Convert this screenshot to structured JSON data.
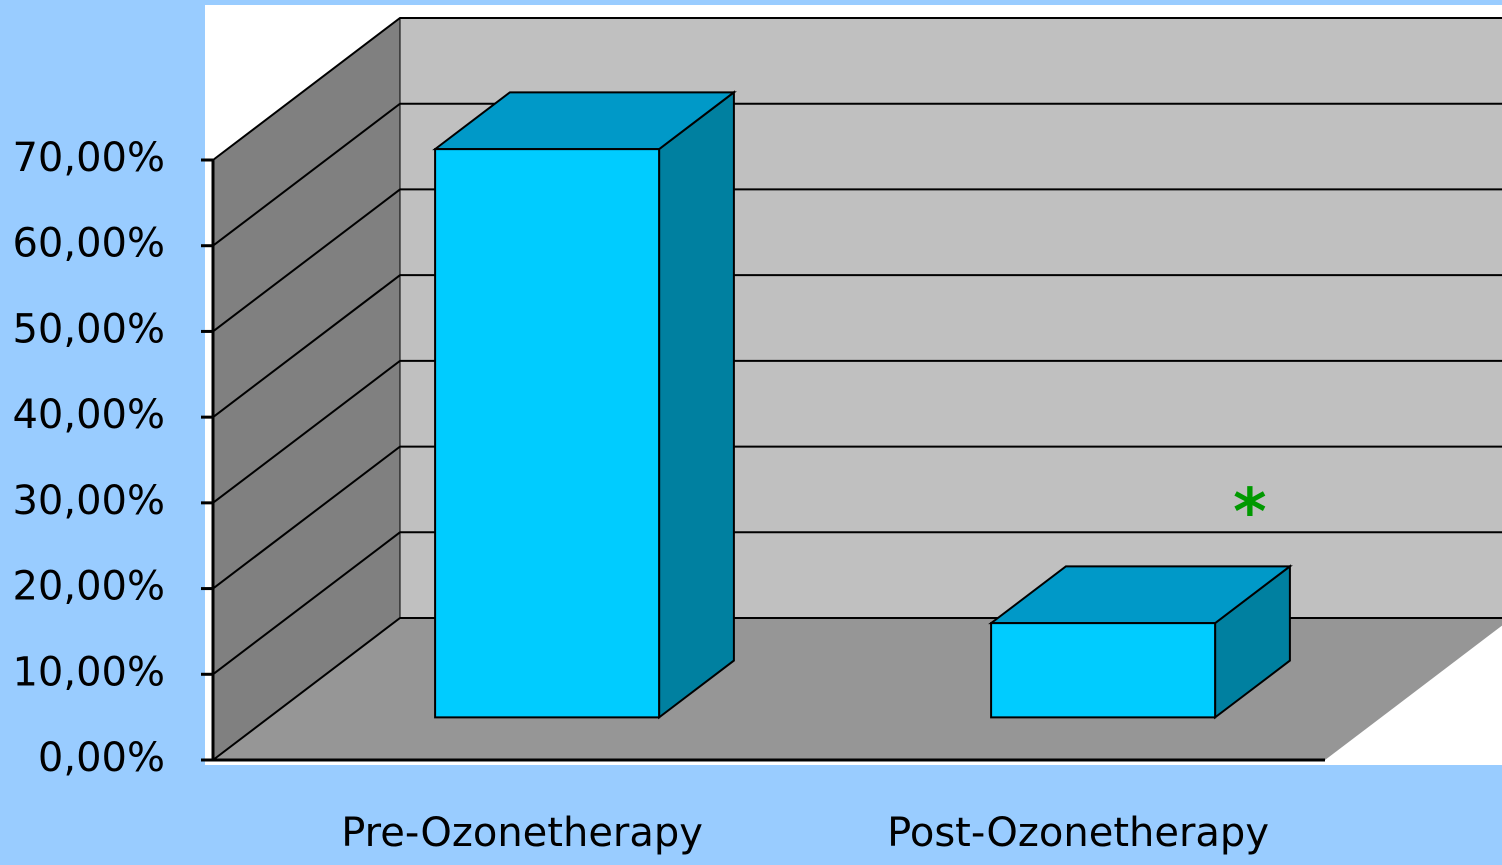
{
  "chart_data": {
    "type": "bar3d",
    "categories": [
      "Pre-Ozonetherapy",
      "Post-Ozonetherapy"
    ],
    "values": [
      66.3,
      11
    ],
    "color": "#00ccff",
    "ylim": [
      0,
      70
    ],
    "yticks": [
      {
        "value": 0,
        "label": "0,00%"
      },
      {
        "value": 10,
        "label": "10,00%"
      },
      {
        "value": 20,
        "label": "20,00%"
      },
      {
        "value": 30,
        "label": "30,00%"
      },
      {
        "value": 40,
        "label": "40,00%"
      },
      {
        "value": 50,
        "label": "50,00%"
      },
      {
        "value": 60,
        "label": "60,00%"
      },
      {
        "value": 70,
        "label": "70,00%"
      }
    ],
    "grid": true,
    "annotations": [
      {
        "text": "*",
        "category": 1,
        "color": "#009900"
      }
    ]
  }
}
